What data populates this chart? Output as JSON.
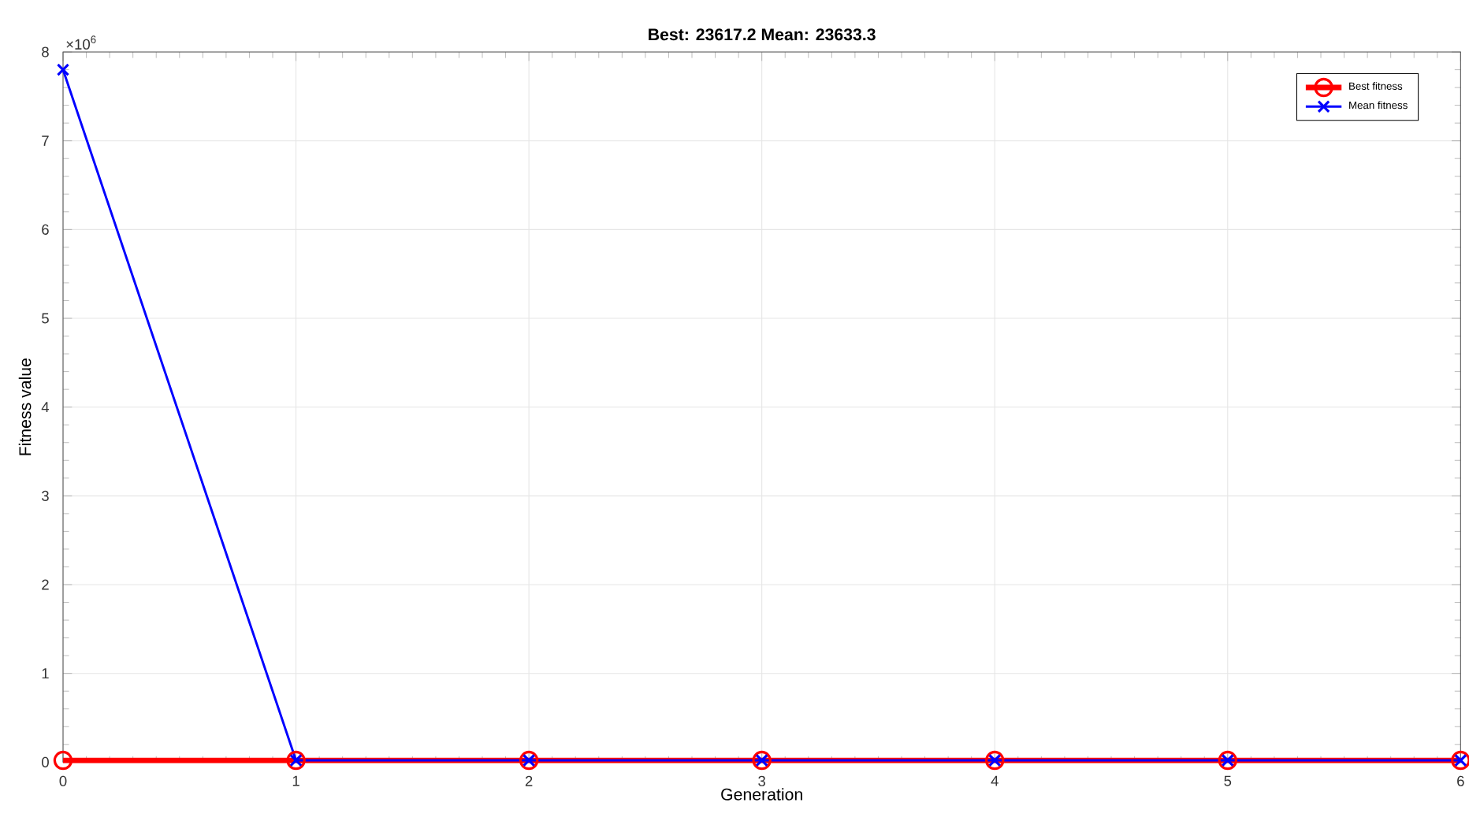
{
  "chart_data": {
    "type": "line",
    "title": "Best: 23617.2 Mean: 23633.3",
    "xlabel": "Generation",
    "ylabel": "Fitness value",
    "x": [
      0,
      1,
      2,
      3,
      4,
      5,
      6
    ],
    "series": [
      {
        "name": "Best fitness",
        "color": "#ff0000",
        "marker": "circle",
        "values": [
          0.02,
          0.02,
          0.02,
          0.02,
          0.02,
          0.02,
          0.02
        ]
      },
      {
        "name": "Mean fitness",
        "color": "#0000ff",
        "marker": "cross",
        "values": [
          7.8,
          0.02,
          0.02,
          0.02,
          0.02,
          0.02,
          0.02
        ]
      }
    ],
    "xlim": [
      0,
      6
    ],
    "xticks": [
      0,
      1,
      2,
      3,
      4,
      5,
      6
    ],
    "ylim": [
      0,
      8
    ],
    "yticks": [
      0,
      1,
      2,
      3,
      4,
      5,
      6,
      7,
      8
    ],
    "annotations": [
      "×10$^{6}$"
    ],
    "grid": true,
    "legend": "top right",
    "line_style": "solid"
  }
}
